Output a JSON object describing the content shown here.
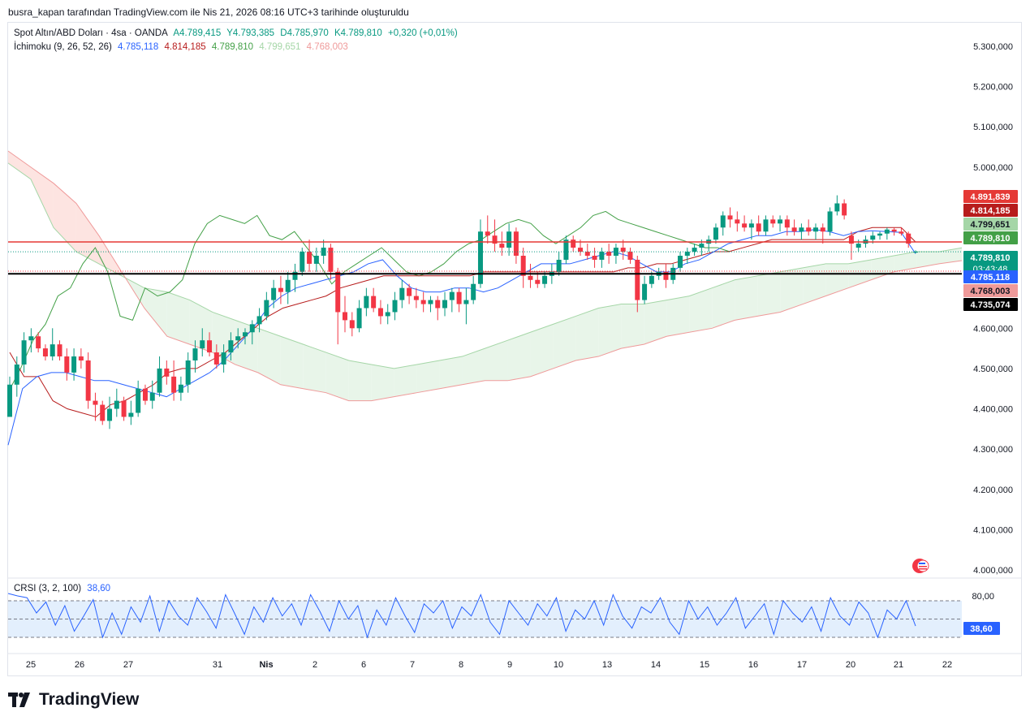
{
  "caption": "busra_kapan tarafından TradingView.com ile Nis 21, 2026 08:16 UTC+3 tarihinde oluşturuldu",
  "legend": {
    "symbol": "Spot Altın/ABD Doları · 4sa · OANDA",
    "open": "A4.789,415",
    "high": "Y4.793,385",
    "low": "D4.785,970",
    "close": "K4.789,810",
    "change": "+0,320 (+0,01%)",
    "ichimoku_label": "İchimoku (9, 26, 52, 26)",
    "ich_conversion": "4.785,118",
    "ich_base": "4.814,185",
    "ich_lagging": "4.789,810",
    "ich_span_a": "4.799,651",
    "ich_span_b": "4.768,003"
  },
  "crsi": {
    "label": "CRSI (3, 2, 100)",
    "value": "38,60"
  },
  "footer": {
    "brand": "TradingView"
  },
  "colors": {
    "up": "#089981",
    "down": "#f23645",
    "conversion": "#2962ff",
    "base": "#b71c1c",
    "lagging": "#43a047",
    "span_a": "#a5d6a7",
    "span_b": "#ef9a9a",
    "cloud_green": "#e8f5e9",
    "cloud_red": "#fde4e1",
    "crsi_line": "#2962ff",
    "hline_red": "#e53935",
    "hline_black": "#000000"
  },
  "chart_data": {
    "type": "candlestick",
    "price_axis": {
      "min": 4000000,
      "max": 5300000,
      "ticks": [
        "5.300,000",
        "5.200,000",
        "5.100,000",
        "5.000,000",
        "4.600,000",
        "4.500,000",
        "4.400,000",
        "4.300,000",
        "4.200,000",
        "4.100,000",
        "4.000,000"
      ],
      "tick_values": [
        5300000,
        5200000,
        5100000,
        5000000,
        4600000,
        4500000,
        4400000,
        4300000,
        4200000,
        4100000,
        4000000
      ]
    },
    "x_labels": [
      "25",
      "26",
      "27",
      "31",
      "Nis",
      "2",
      "6",
      "7",
      "8",
      "9",
      "10",
      "13",
      "14",
      "15",
      "16",
      "17",
      "20",
      "21",
      "22"
    ],
    "horizontal_lines": [
      {
        "value": 4814185,
        "color": "red"
      },
      {
        "value": 4735074,
        "color": "black"
      }
    ],
    "price_labels": [
      {
        "text": "4.891,839",
        "value": 4891839,
        "bg": "#e53935",
        "fg": "#ffffff"
      },
      {
        "text": "4.814,185",
        "value": 4814185,
        "bg": "#b71c1c",
        "fg": "#ffffff"
      },
      {
        "text": "4.799,651",
        "value": 4799651,
        "bg": "#a5d6a7",
        "fg": "#131722"
      },
      {
        "text": "4.789,810",
        "value": 4789810,
        "bg": "#43a047",
        "fg": "#ffffff"
      },
      {
        "text": "4.789,810",
        "sub": "03:43:48",
        "value": 4789810,
        "bg": "#089981",
        "fg": "#ffffff"
      },
      {
        "text": "4.785,118",
        "value": 4785118,
        "bg": "#2962ff",
        "fg": "#ffffff"
      },
      {
        "text": "4.768,003",
        "value": 4768003,
        "bg": "#ef9a9a",
        "fg": "#131722"
      },
      {
        "text": "4.735,074",
        "value": 4735074,
        "bg": "#000000",
        "fg": "#ffffff"
      }
    ],
    "candles": [
      [
        4380000,
        4480000,
        4380000,
        4460000
      ],
      [
        4460000,
        4530000,
        4430000,
        4510000
      ],
      [
        4510000,
        4590000,
        4490000,
        4570000
      ],
      [
        4570000,
        4600000,
        4540000,
        4580000
      ],
      [
        4580000,
        4590000,
        4540000,
        4550000
      ],
      [
        4550000,
        4560000,
        4520000,
        4530000
      ],
      [
        4530000,
        4600000,
        4520000,
        4560000
      ],
      [
        4560000,
        4570000,
        4520000,
        4530000
      ],
      [
        4530000,
        4550000,
        4470000,
        4490000
      ],
      [
        4490000,
        4550000,
        4470000,
        4530000
      ],
      [
        4530000,
        4550000,
        4500000,
        4520000
      ],
      [
        4520000,
        4540000,
        4400000,
        4420000
      ],
      [
        4420000,
        4440000,
        4370000,
        4410000
      ],
      [
        4410000,
        4420000,
        4360000,
        4370000
      ],
      [
        4370000,
        4430000,
        4350000,
        4400000
      ],
      [
        4400000,
        4450000,
        4380000,
        4420000
      ],
      [
        4420000,
        4430000,
        4370000,
        4380000
      ],
      [
        4380000,
        4420000,
        4360000,
        4390000
      ],
      [
        4390000,
        4470000,
        4380000,
        4450000
      ],
      [
        4450000,
        4460000,
        4410000,
        4420000
      ],
      [
        4420000,
        4470000,
        4400000,
        4440000
      ],
      [
        4440000,
        4530000,
        4430000,
        4500000
      ],
      [
        4500000,
        4520000,
        4460000,
        4480000
      ],
      [
        4480000,
        4520000,
        4420000,
        4440000
      ],
      [
        4440000,
        4480000,
        4420000,
        4460000
      ],
      [
        4460000,
        4540000,
        4440000,
        4520000
      ],
      [
        4520000,
        4570000,
        4490000,
        4550000
      ],
      [
        4550000,
        4600000,
        4530000,
        4570000
      ],
      [
        4570000,
        4590000,
        4530000,
        4540000
      ],
      [
        4540000,
        4560000,
        4500000,
        4510000
      ],
      [
        4510000,
        4560000,
        4490000,
        4540000
      ],
      [
        4540000,
        4590000,
        4520000,
        4570000
      ],
      [
        4570000,
        4600000,
        4550000,
        4580000
      ],
      [
        4580000,
        4600000,
        4560000,
        4590000
      ],
      [
        4590000,
        4620000,
        4560000,
        4610000
      ],
      [
        4610000,
        4650000,
        4590000,
        4630000
      ],
      [
        4630000,
        4690000,
        4620000,
        4670000
      ],
      [
        4670000,
        4720000,
        4650000,
        4700000
      ],
      [
        4700000,
        4730000,
        4660000,
        4690000
      ],
      [
        4690000,
        4740000,
        4660000,
        4720000
      ],
      [
        4720000,
        4760000,
        4690000,
        4740000
      ],
      [
        4740000,
        4800000,
        4730000,
        4790000
      ],
      [
        4790000,
        4820000,
        4740000,
        4760000
      ],
      [
        4760000,
        4800000,
        4740000,
        4780000
      ],
      [
        4780000,
        4820000,
        4760000,
        4800000
      ],
      [
        4800000,
        4810000,
        4720000,
        4740000
      ],
      [
        4740000,
        4750000,
        4560000,
        4640000
      ],
      [
        4640000,
        4680000,
        4590000,
        4620000
      ],
      [
        4620000,
        4640000,
        4580000,
        4600000
      ],
      [
        4600000,
        4670000,
        4590000,
        4650000
      ],
      [
        4650000,
        4700000,
        4630000,
        4680000
      ],
      [
        4680000,
        4700000,
        4640000,
        4650000
      ],
      [
        4650000,
        4670000,
        4610000,
        4630000
      ],
      [
        4630000,
        4660000,
        4610000,
        4640000
      ],
      [
        4640000,
        4690000,
        4620000,
        4670000
      ],
      [
        4670000,
        4720000,
        4650000,
        4700000
      ],
      [
        4700000,
        4710000,
        4660000,
        4680000
      ],
      [
        4680000,
        4700000,
        4650000,
        4670000
      ],
      [
        4670000,
        4690000,
        4640000,
        4660000
      ],
      [
        4660000,
        4680000,
        4640000,
        4670000
      ],
      [
        4670000,
        4680000,
        4620000,
        4650000
      ],
      [
        4650000,
        4690000,
        4630000,
        4670000
      ],
      [
        4670000,
        4700000,
        4640000,
        4690000
      ],
      [
        4690000,
        4700000,
        4640000,
        4660000
      ],
      [
        4660000,
        4700000,
        4610000,
        4670000
      ],
      [
        4670000,
        4730000,
        4660000,
        4710000
      ],
      [
        4710000,
        4870000,
        4700000,
        4840000
      ],
      [
        4840000,
        4880000,
        4810000,
        4830000
      ],
      [
        4830000,
        4870000,
        4790000,
        4810000
      ],
      [
        4810000,
        4840000,
        4780000,
        4800000
      ],
      [
        4800000,
        4860000,
        4780000,
        4840000
      ],
      [
        4840000,
        4850000,
        4760000,
        4780000
      ],
      [
        4780000,
        4800000,
        4700000,
        4730000
      ],
      [
        4730000,
        4760000,
        4700000,
        4720000
      ],
      [
        4720000,
        4740000,
        4700000,
        4710000
      ],
      [
        4710000,
        4740000,
        4700000,
        4730000
      ],
      [
        4730000,
        4760000,
        4710000,
        4740000
      ],
      [
        4740000,
        4790000,
        4730000,
        4770000
      ],
      [
        4770000,
        4830000,
        4760000,
        4820000
      ],
      [
        4820000,
        4830000,
        4790000,
        4800000
      ],
      [
        4800000,
        4820000,
        4780000,
        4790000
      ],
      [
        4790000,
        4810000,
        4770000,
        4780000
      ],
      [
        4780000,
        4800000,
        4750000,
        4770000
      ],
      [
        4770000,
        4800000,
        4750000,
        4790000
      ],
      [
        4790000,
        4810000,
        4760000,
        4780000
      ],
      [
        4780000,
        4810000,
        4760000,
        4800000
      ],
      [
        4800000,
        4820000,
        4770000,
        4790000
      ],
      [
        4790000,
        4800000,
        4760000,
        4770000
      ],
      [
        4770000,
        4780000,
        4640000,
        4670000
      ],
      [
        4670000,
        4730000,
        4660000,
        4710000
      ],
      [
        4710000,
        4740000,
        4700000,
        4730000
      ],
      [
        4730000,
        4750000,
        4720000,
        4740000
      ],
      [
        4740000,
        4760000,
        4700000,
        4720000
      ],
      [
        4720000,
        4760000,
        4710000,
        4750000
      ],
      [
        4750000,
        4790000,
        4740000,
        4780000
      ],
      [
        4780000,
        4800000,
        4760000,
        4790000
      ],
      [
        4790000,
        4810000,
        4780000,
        4800000
      ],
      [
        4800000,
        4820000,
        4780000,
        4810000
      ],
      [
        4810000,
        4830000,
        4790000,
        4820000
      ],
      [
        4820000,
        4860000,
        4810000,
        4850000
      ],
      [
        4850000,
        4890000,
        4830000,
        4880000
      ],
      [
        4880000,
        4900000,
        4850000,
        4870000
      ],
      [
        4870000,
        4890000,
        4840000,
        4860000
      ],
      [
        4860000,
        4880000,
        4840000,
        4850000
      ],
      [
        4850000,
        4870000,
        4820000,
        4860000
      ],
      [
        4860000,
        4880000,
        4830000,
        4840000
      ],
      [
        4840000,
        4880000,
        4830000,
        4870000
      ],
      [
        4870000,
        4880000,
        4850000,
        4860000
      ],
      [
        4860000,
        4880000,
        4840000,
        4870000
      ],
      [
        4870000,
        4880000,
        4830000,
        4850000
      ],
      [
        4850000,
        4870000,
        4830000,
        4840000
      ],
      [
        4840000,
        4860000,
        4820000,
        4850000
      ],
      [
        4850000,
        4870000,
        4830000,
        4840000
      ],
      [
        4840000,
        4860000,
        4820000,
        4850000
      ],
      [
        4850000,
        4860000,
        4810000,
        4840000
      ],
      [
        4840000,
        4900000,
        4830000,
        4890000
      ],
      [
        4890000,
        4930000,
        4880000,
        4910000
      ],
      [
        4910000,
        4920000,
        4870000,
        4880000
      ],
      [
        4830000,
        4840000,
        4770000,
        4810000
      ],
      [
        4800000,
        4820000,
        4790000,
        4810000
      ],
      [
        4810000,
        4830000,
        4800000,
        4820000
      ],
      [
        4820000,
        4840000,
        4810000,
        4830000
      ],
      [
        4830000,
        4840000,
        4820000,
        4835000
      ],
      [
        4835000,
        4850000,
        4820000,
        4845000
      ],
      [
        4845000,
        4850000,
        4830000,
        4840000
      ],
      [
        4840000,
        4850000,
        4830000,
        4835000
      ],
      [
        4835000,
        4840000,
        4800000,
        4810000
      ],
      [
        4789415,
        4793385,
        4785970,
        4789810
      ]
    ],
    "conversion_line": [
      4310000,
      4450000,
      4480000,
      4490000,
      4490000,
      4480000,
      4470000,
      4470000,
      4460000,
      4450000,
      4440000,
      4430000,
      4450000,
      4470000,
      4490000,
      4520000,
      4560000,
      4600000,
      4650000,
      4680000,
      4700000,
      4710000,
      4720000,
      4730000,
      4740000,
      4760000,
      4770000,
      4730000,
      4700000,
      4690000,
      4690000,
      4700000,
      4700000,
      4690000,
      4700000,
      4720000,
      4740000,
      4760000,
      4760000,
      4760000,
      4770000,
      4780000,
      4790000,
      4780000,
      4760000,
      4740000,
      4740000,
      4760000,
      4770000,
      4790000,
      4810000,
      4820000,
      4830000,
      4830000,
      4840000,
      4840000,
      4845000,
      4840000,
      4830000,
      4840000,
      4842000,
      4840000,
      4838000,
      4785118
    ],
    "base_line": [
      4540000,
      4480000,
      4480000,
      4420000,
      4400000,
      4390000,
      4380000,
      4410000,
      4420000,
      4440000,
      4460000,
      4490000,
      4500000,
      4500000,
      4520000,
      4540000,
      4570000,
      4600000,
      4630000,
      4650000,
      4660000,
      4670000,
      4680000,
      4700000,
      4710000,
      4720000,
      4730000,
      4730000,
      4730000,
      4730000,
      4730000,
      4730000,
      4730000,
      4740000,
      4740000,
      4740000,
      4740000,
      4740000,
      4740000,
      4740000,
      4740000,
      4740000,
      4740000,
      4750000,
      4750000,
      4760000,
      4760000,
      4770000,
      4780000,
      4790000,
      4790000,
      4800000,
      4810000,
      4820000,
      4820000,
      4820000,
      4820000,
      4820000,
      4820000,
      4840000,
      4850000,
      4850000,
      4850000,
      4814185
    ],
    "lagging_line": [
      4440000,
      4500000,
      4570000,
      4610000,
      4680000,
      4700000,
      4760000,
      4800000,
      4740000,
      4630000,
      4620000,
      4700000,
      4680000,
      4690000,
      4720000,
      4810000,
      4860000,
      4880000,
      4870000,
      4860000,
      4880000,
      4830000,
      4820000,
      4840000,
      4800000,
      4760000,
      4710000,
      4740000,
      4760000,
      4780000,
      4800000,
      4770000,
      4740000,
      4730000,
      4740000,
      4760000,
      4790000,
      4810000,
      4820000,
      4840000,
      4860000,
      4870000,
      4860000,
      4830000,
      4810000,
      4830000,
      4850000,
      4880000,
      4890000,
      4870000,
      4860000,
      4850000,
      4840000,
      4830000,
      4820000,
      4810000,
      4800000,
      4800000,
      4789810
    ],
    "span_a": [
      5010000,
      4970000,
      4850000,
      4790000,
      4760000,
      4730000,
      4700000,
      4690000,
      4670000,
      4640000,
      4620000,
      4600000,
      4580000,
      4560000,
      4540000,
      4520000,
      4510000,
      4500000,
      4510000,
      4520000,
      4530000,
      4550000,
      4570000,
      4590000,
      4610000,
      4630000,
      4650000,
      4660000,
      4660000,
      4670000,
      4680000,
      4700000,
      4720000,
      4730000,
      4740000,
      4750000,
      4760000,
      4760000,
      4770000,
      4780000,
      4790000,
      4790000,
      4799651
    ],
    "span_b": [
      5040000,
      5000000,
      4960000,
      4910000,
      4830000,
      4740000,
      4650000,
      4580000,
      4560000,
      4540000,
      4510000,
      4490000,
      4460000,
      4450000,
      4440000,
      4420000,
      4420000,
      4430000,
      4440000,
      4450000,
      4460000,
      4470000,
      4470000,
      4480000,
      4500000,
      4520000,
      4530000,
      4550000,
      4560000,
      4580000,
      4590000,
      4600000,
      4620000,
      4630000,
      4640000,
      4660000,
      4680000,
      4700000,
      4720000,
      4740000,
      4750000,
      4760000,
      4768003
    ],
    "crsi": {
      "ticks": [
        "80,00"
      ],
      "band_upper": 80,
      "band_mid": 50,
      "band_lower": 20,
      "values": [
        92,
        88,
        85,
        60,
        78,
        40,
        72,
        30,
        55,
        82,
        20,
        60,
        25,
        70,
        45,
        88,
        30,
        80,
        55,
        40,
        85,
        62,
        35,
        90,
        58,
        25,
        70,
        45,
        85,
        55,
        75,
        40,
        90,
        62,
        30,
        80,
        50,
        72,
        20,
        65,
        40,
        85,
        55,
        28,
        75,
        60,
        80,
        35,
        70,
        55,
        90,
        45,
        25,
        80,
        60,
        40,
        75,
        55,
        85,
        30,
        65,
        50,
        80,
        40,
        90,
        55,
        35,
        70,
        60,
        85,
        45,
        25,
        80,
        50,
        70,
        40,
        60,
        85,
        35,
        55,
        75,
        25,
        80,
        60,
        45,
        70,
        30,
        85,
        55,
        40,
        78,
        60,
        20,
        65,
        50,
        80,
        38.6
      ]
    }
  }
}
